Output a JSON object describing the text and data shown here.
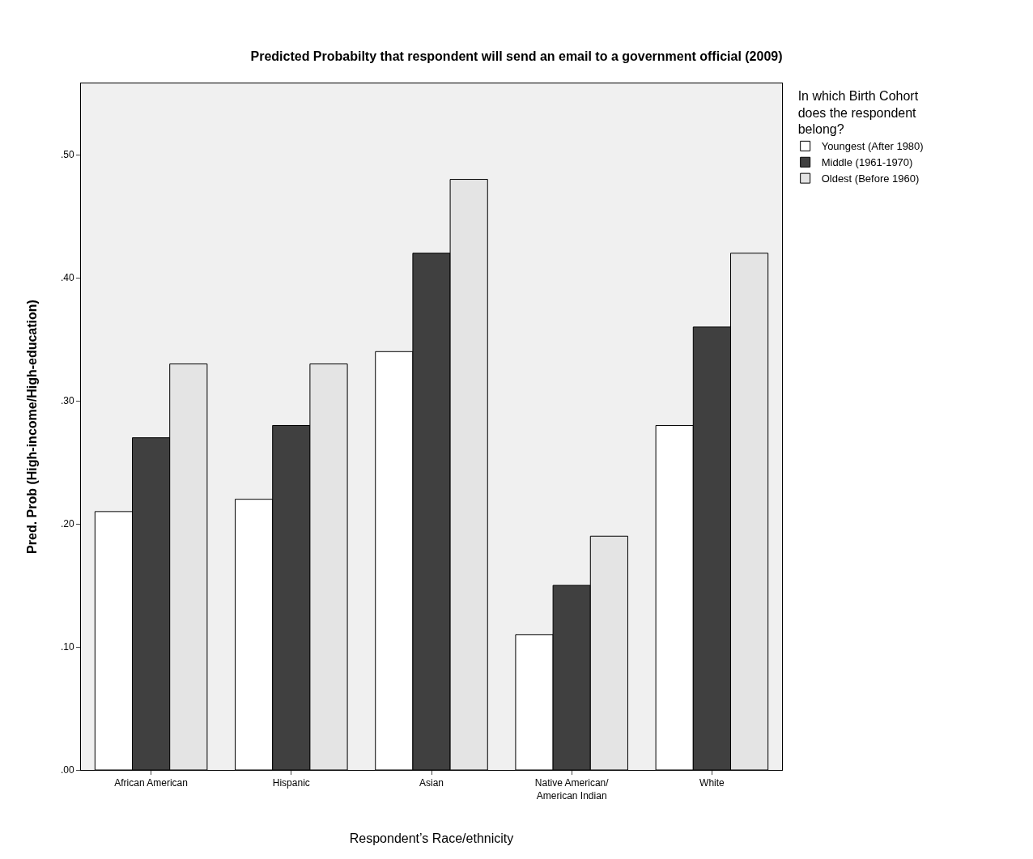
{
  "chart_data": {
    "type": "bar",
    "title": "Predicted Probabilty that respondent will send an email to a government official (2009)",
    "xlabel": "Respondent’s Race/ethnicity",
    "ylabel": "Pred. Prob (High-income/High-education)",
    "legend_title": "In which Birth Cohort does the respondent belong?",
    "categories": [
      "African American",
      "Hispanic",
      "Asian",
      "Native American/American Indian",
      "White"
    ],
    "series": [
      {
        "name": "Youngest (After 1980)",
        "color": "#ffffff",
        "values": [
          0.21,
          0.22,
          0.34,
          0.11,
          0.28
        ]
      },
      {
        "name": "Middle (1961-1970)",
        "color": "#404040",
        "values": [
          0.27,
          0.28,
          0.42,
          0.15,
          0.36
        ]
      },
      {
        "name": "Oldest (Before 1960)",
        "color": "#e4e4e4",
        "values": [
          0.33,
          0.33,
          0.48,
          0.19,
          0.42
        ]
      }
    ],
    "ylim": [
      0,
      0.558
    ],
    "yticks": [
      {
        "value": 0,
        "label": ".00"
      },
      {
        "value": 0.1,
        "label": ".10"
      },
      {
        "value": 0.2,
        "label": ".20"
      },
      {
        "value": 0.3,
        "label": ".30"
      },
      {
        "value": 0.4,
        "label": ".40"
      },
      {
        "value": 0.5,
        "label": ".50"
      }
    ],
    "grid": false,
    "legend": "top right"
  }
}
